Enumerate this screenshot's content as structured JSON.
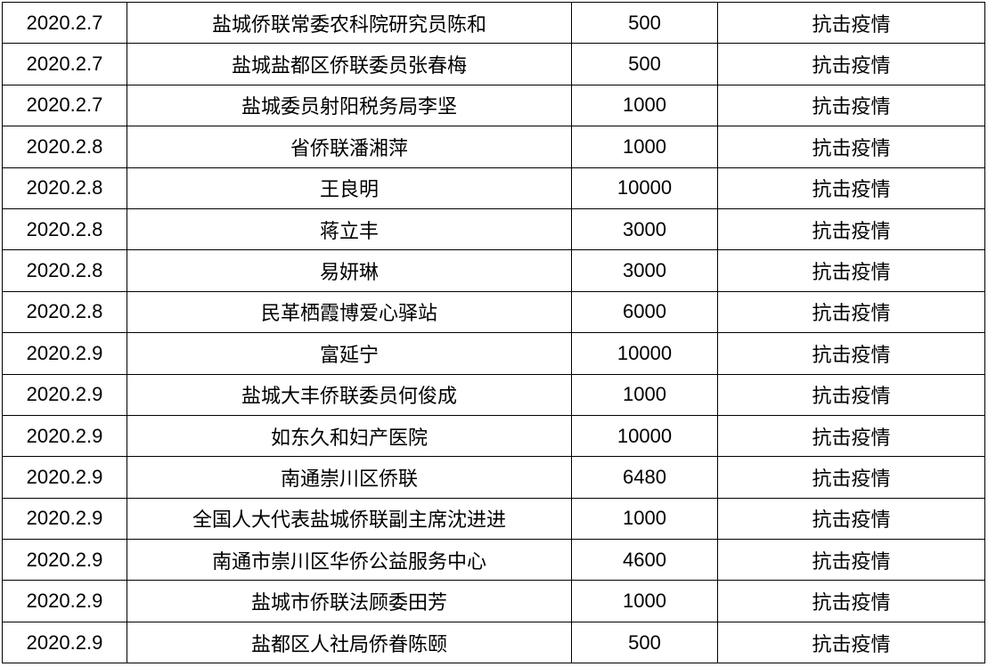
{
  "rows": [
    {
      "date": "2020.2.7",
      "donor": "盐城侨联常委农科院研究员陈和",
      "amount": "500",
      "purpose": "抗击疫情"
    },
    {
      "date": "2020.2.7",
      "donor": "盐城盐都区侨联委员张春梅",
      "amount": "500",
      "purpose": "抗击疫情"
    },
    {
      "date": "2020.2.7",
      "donor": "盐城委员射阳税务局李坚",
      "amount": "1000",
      "purpose": "抗击疫情"
    },
    {
      "date": "2020.2.8",
      "donor": "省侨联潘湘萍",
      "amount": "1000",
      "purpose": "抗击疫情"
    },
    {
      "date": "2020.2.8",
      "donor": "王良明",
      "amount": "10000",
      "purpose": "抗击疫情"
    },
    {
      "date": "2020.2.8",
      "donor": "蒋立丰",
      "amount": "3000",
      "purpose": "抗击疫情"
    },
    {
      "date": "2020.2.8",
      "donor": "易妍琳",
      "amount": "3000",
      "purpose": "抗击疫情"
    },
    {
      "date": "2020.2.8",
      "donor": "民革栖霞博爱心驿站",
      "amount": "6000",
      "purpose": "抗击疫情"
    },
    {
      "date": "2020.2.9",
      "donor": "富延宁",
      "amount": "10000",
      "purpose": "抗击疫情"
    },
    {
      "date": "2020.2.9",
      "donor": "盐城大丰侨联委员何俊成",
      "amount": "1000",
      "purpose": "抗击疫情"
    },
    {
      "date": "2020.2.9",
      "donor": "如东久和妇产医院",
      "amount": "10000",
      "purpose": "抗击疫情"
    },
    {
      "date": "2020.2.9",
      "donor": "南通崇川区侨联",
      "amount": "6480",
      "purpose": "抗击疫情"
    },
    {
      "date": "2020.2.9",
      "donor": "全国人大代表盐城侨联副主席沈进进",
      "amount": "1000",
      "purpose": "抗击疫情"
    },
    {
      "date": "2020.2.9",
      "donor": "南通市崇川区华侨公益服务中心",
      "amount": "4600",
      "purpose": "抗击疫情"
    },
    {
      "date": "2020.2.9",
      "donor": "盐城市侨联法顾委田芳",
      "amount": "1000",
      "purpose": "抗击疫情"
    },
    {
      "date": "2020.2.9",
      "donor": "盐都区人社局侨眷陈颐",
      "amount": "500",
      "purpose": "抗击疫情"
    }
  ]
}
